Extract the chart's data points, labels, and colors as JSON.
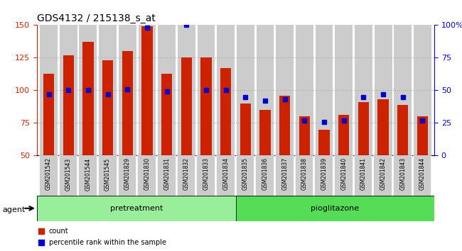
{
  "title": "GDS4132 / 215138_s_at",
  "samples": [
    "GSM201542",
    "GSM201543",
    "GSM201544",
    "GSM201545",
    "GSM201829",
    "GSM201830",
    "GSM201831",
    "GSM201832",
    "GSM201833",
    "GSM201834",
    "GSM201835",
    "GSM201836",
    "GSM201837",
    "GSM201838",
    "GSM201839",
    "GSM201840",
    "GSM201841",
    "GSM201842",
    "GSM201843",
    "GSM201844"
  ],
  "counts": [
    113,
    127,
    137,
    123,
    130,
    149,
    113,
    125,
    125,
    117,
    90,
    85,
    96,
    80,
    70,
    81,
    91,
    93,
    89,
    80
  ],
  "percentiles": [
    47,
    50,
    50,
    47,
    51,
    98,
    49,
    100,
    50,
    50,
    45,
    42,
    43,
    27,
    26,
    27,
    45,
    47,
    45,
    27
  ],
  "pretreatment_count": 10,
  "pioglitazone_count": 10,
  "ylim_left": [
    50,
    150
  ],
  "ylim_right": [
    0,
    100
  ],
  "yticks_left": [
    50,
    75,
    100,
    125,
    150
  ],
  "yticks_right": [
    0,
    25,
    50,
    75,
    100
  ],
  "bar_color": "#cc2200",
  "dot_color": "#0000cc",
  "pretreatment_color": "#99ee99",
  "pioglitazone_color": "#55dd55",
  "agent_label": "agent",
  "pretreatment_label": "pretreatment",
  "pioglitazone_label": "pioglitazone",
  "legend_count_label": "count",
  "legend_pct_label": "percentile rank within the sample",
  "background_bar_color": "#cccccc",
  "grid_color": "#aaaaaa"
}
